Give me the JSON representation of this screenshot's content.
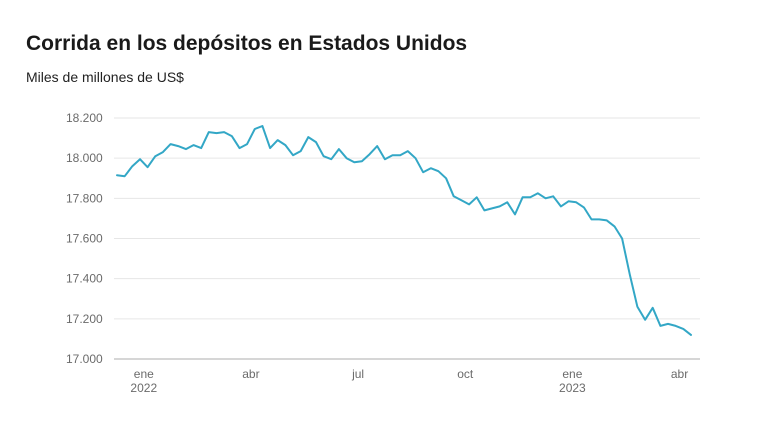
{
  "chart_data": {
    "type": "line",
    "title": "Corrida en los depósitos en Estados Unidos",
    "subtitle": "Miles de millones de US$",
    "xlabel": "",
    "ylabel": "",
    "ylim": [
      17000,
      18200
    ],
    "y_ticks": [
      {
        "value": 18200,
        "label": "18.200"
      },
      {
        "value": 18000,
        "label": "18.000"
      },
      {
        "value": 17800,
        "label": "17.800"
      },
      {
        "value": 17600,
        "label": "17.600"
      },
      {
        "value": 17400,
        "label": "17.400"
      },
      {
        "value": 17200,
        "label": "17.200"
      },
      {
        "value": 17000,
        "label": "17.000"
      }
    ],
    "x_ticks": [
      {
        "index": 3.5,
        "label": "ene",
        "sublabel": "2022"
      },
      {
        "index": 17.5,
        "label": "abr",
        "sublabel": ""
      },
      {
        "index": 31.5,
        "label": "jul",
        "sublabel": ""
      },
      {
        "index": 45.5,
        "label": "oct",
        "sublabel": ""
      },
      {
        "index": 59.5,
        "label": "ene",
        "sublabel": "2023"
      },
      {
        "index": 73.5,
        "label": "abr",
        "sublabel": ""
      }
    ],
    "grid": true,
    "line_color": "#33a7c6",
    "series": [
      {
        "name": "",
        "values": [
          17915,
          17910,
          17960,
          17995,
          17955,
          18010,
          18030,
          18070,
          18060,
          18045,
          18065,
          18050,
          18130,
          18125,
          18130,
          18110,
          18050,
          18070,
          18145,
          18160,
          18050,
          18090,
          18065,
          18015,
          18035,
          18105,
          18080,
          18010,
          17995,
          18045,
          18000,
          17980,
          17985,
          18020,
          18060,
          17995,
          18015,
          18015,
          18035,
          18000,
          17930,
          17950,
          17935,
          17900,
          17810,
          17790,
          17770,
          17805,
          17740,
          17750,
          17760,
          17780,
          17720,
          17805,
          17805,
          17825,
          17800,
          17810,
          17760,
          17785,
          17780,
          17755,
          17695,
          17695,
          17690,
          17660,
          17600,
          17420,
          17260,
          17195,
          17255,
          17165,
          17175,
          17165,
          17150,
          17120
        ]
      }
    ]
  }
}
